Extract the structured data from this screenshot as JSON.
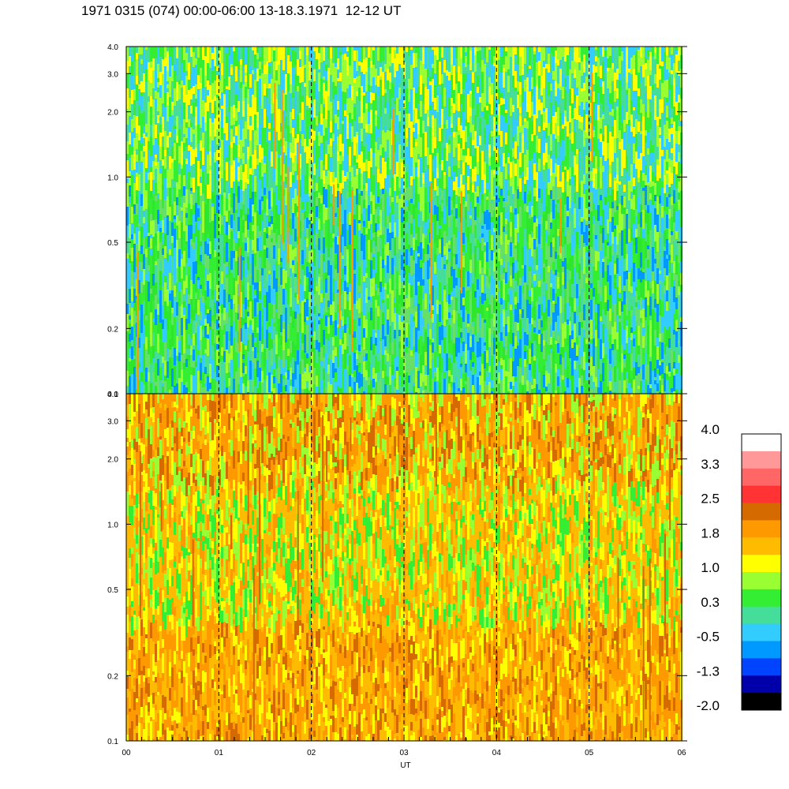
{
  "title": "1971 0315 (074) 00:00-06:00 13-18.3.1971  12-12 UT",
  "chart_data": [
    {
      "type": "heatmap",
      "panel": "top",
      "x_range": [
        "00",
        "06"
      ],
      "y_ticks": [
        "0.1",
        "0.2",
        "0.5",
        "1.0",
        "2.0",
        "3.0",
        "4.0"
      ],
      "y_scale": "log",
      "ylim": [
        0.1,
        4.0
      ],
      "dashed_hour_markers": [
        "01",
        "02",
        "03",
        "04",
        "05"
      ],
      "dominant_levels": [
        "0.3",
        "-0.5",
        "1.0"
      ]
    },
    {
      "type": "heatmap",
      "panel": "bottom",
      "x_range": [
        "00",
        "06"
      ],
      "x_ticks": [
        "00",
        "01",
        "02",
        "03",
        "04",
        "05",
        "06"
      ],
      "xlabel": "UT",
      "y_ticks": [
        "0.1",
        "0.2",
        "0.5",
        "1.0",
        "2.0",
        "3.0",
        "4.0"
      ],
      "y_scale": "log",
      "ylim": [
        0.1,
        4.0
      ],
      "dashed_hour_markers": [
        "01",
        "02",
        "03",
        "04",
        "05"
      ],
      "dominant_levels": [
        "1.0",
        "1.8",
        "2.5"
      ]
    }
  ],
  "colorbar": {
    "labels": [
      "4.0",
      "3.3",
      "2.5",
      "1.8",
      "1.0",
      "0.3",
      "-0.5",
      "-1.3",
      "-2.0"
    ],
    "colors_top_to_bottom": [
      "#ffffff",
      "#ff9999",
      "#ff6666",
      "#ff3333",
      "#d46a00",
      "#ff9900",
      "#ffbb00",
      "#ffff00",
      "#99ff33",
      "#33ee33",
      "#44dd99",
      "#33ccff",
      "#0099ff",
      "#0044ff",
      "#0000aa",
      "#000000"
    ]
  }
}
